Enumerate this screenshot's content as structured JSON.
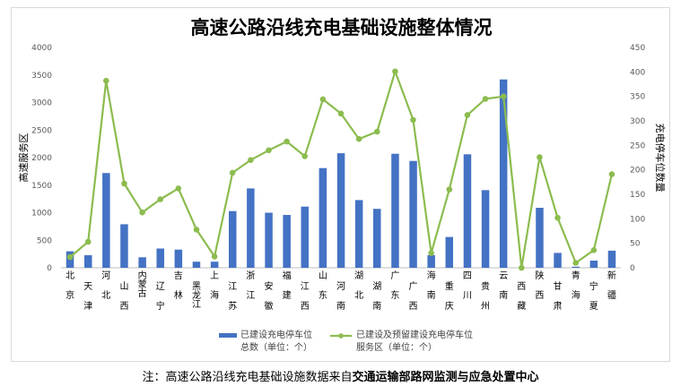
{
  "chart_data": {
    "type": "bar",
    "title": "高速公路沿线充电基础设施整体情况",
    "categories": [
      "北京",
      "天津",
      "河北",
      "山西",
      "内蒙古",
      "辽宁",
      "吉林",
      "黑龙江",
      "上海",
      "江苏",
      "浙江",
      "安徽",
      "福建",
      "江西",
      "山东",
      "河南",
      "湖北",
      "湖南",
      "广东",
      "广西",
      "海南",
      "重庆",
      "四川",
      "贵州",
      "云南",
      "西藏",
      "陕西",
      "甘肃",
      "青海",
      "宁夏",
      "新疆"
    ],
    "series": [
      {
        "name": "已建设充电停车位总数（单位：个）",
        "type": "bar",
        "axis": "left",
        "color": "#4472c4",
        "values": [
          300,
          230,
          1720,
          790,
          190,
          350,
          330,
          110,
          110,
          1030,
          1440,
          1000,
          960,
          1110,
          1810,
          2080,
          1230,
          1070,
          2070,
          1940,
          230,
          560,
          2060,
          1410,
          3420,
          0,
          1090,
          270,
          20,
          130,
          310
        ]
      },
      {
        "name": "已建设及预留建设充电停车位服务区（单位：个）",
        "type": "line",
        "axis": "right",
        "color": "#8cbc4f",
        "values": [
          22,
          53,
          382,
          172,
          113,
          140,
          162,
          78,
          23,
          194,
          220,
          240,
          258,
          228,
          344,
          315,
          263,
          278,
          401,
          302,
          30,
          160,
          312,
          345,
          350,
          0,
          226,
          102,
          10,
          36,
          191
        ]
      }
    ],
    "ylabel": "高速服务区",
    "ylabel_right": "充电停车位数量",
    "ylim": [
      0,
      4000
    ],
    "ylim_right": [
      0,
      450
    ],
    "yticks": [
      "0",
      "500",
      "1000",
      "1500",
      "2000",
      "2500",
      "3000",
      "3500",
      "4000"
    ],
    "yticks_right": [
      "0",
      "50",
      "100",
      "150",
      "200",
      "250",
      "300",
      "350",
      "400",
      "450"
    ],
    "legend_position": "bottom",
    "grid": false
  },
  "legend": {
    "bar_line1": "已建设充电停车位",
    "bar_line2": "总数（单位：个）",
    "line_line1": "已建设及预留建设充电停车位",
    "line_line2": "服务区（单位：个）"
  },
  "note": {
    "prefix": "注：高速公路沿线充电基础设施数据来自",
    "source": "交通运输部路网监测与应急处置中心"
  }
}
